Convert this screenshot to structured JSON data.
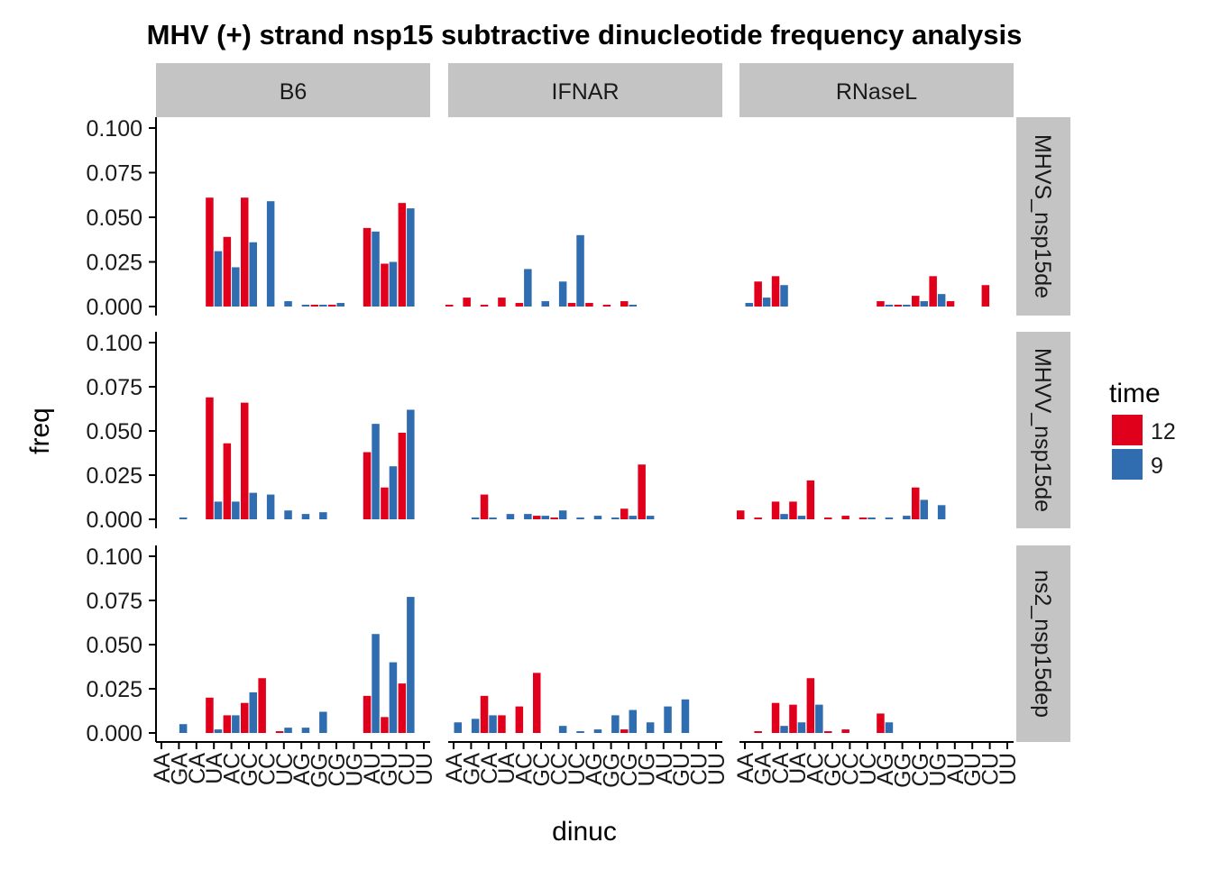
{
  "chart_data": {
    "type": "bar",
    "title": "MHV (+) strand nsp15 subtractive dinucleotide frequency analysis",
    "xlabel": "dinuc",
    "ylabel": "freq",
    "ylim": [
      0,
      0.105
    ],
    "y_ticks": [
      "0.000",
      "0.025",
      "0.050",
      "0.075",
      "0.100"
    ],
    "y_tick_values": [
      0,
      0.025,
      0.05,
      0.075,
      0.1
    ],
    "categories": [
      "AA",
      "GA",
      "CA",
      "UA",
      "AC",
      "GC",
      "CC",
      "UC",
      "AG",
      "GG",
      "CG",
      "UG",
      "AU",
      "GU",
      "CU",
      "UU"
    ],
    "column_facets": [
      "B6",
      "IFNAR",
      "RNaseL"
    ],
    "row_facets": [
      "MHVS_nsp15de",
      "MHVV_nsp15de",
      "ns2_nsp15dep"
    ],
    "legend": {
      "title": "time",
      "position": "right",
      "entries": [
        "12",
        "9"
      ]
    },
    "colors": {
      "12": "#E0001B",
      "9": "#2F6DB0",
      "strip_fill": "#C4C4C4"
    },
    "panels": [
      {
        "row": 0,
        "col": 0,
        "series": [
          {
            "name": "12",
            "values": [
              null,
              null,
              null,
              0.061,
              0.039,
              0.061,
              null,
              null,
              null,
              0.001,
              0.001,
              null,
              0.044,
              0.024,
              0.058,
              null
            ]
          },
          {
            "name": "9",
            "values": [
              null,
              null,
              null,
              0.031,
              0.022,
              0.036,
              0.059,
              0.003,
              0.001,
              0.001,
              0.002,
              null,
              0.042,
              0.025,
              0.055,
              null
            ]
          }
        ]
      },
      {
        "row": 0,
        "col": 1,
        "series": [
          {
            "name": "12",
            "values": [
              0.001,
              0.005,
              0.001,
              0.005,
              0.002,
              null,
              null,
              0.002,
              0.002,
              0.001,
              0.003,
              null,
              null,
              null,
              null,
              null
            ]
          },
          {
            "name": "9",
            "values": [
              null,
              null,
              null,
              null,
              0.021,
              0.003,
              0.014,
              0.04,
              null,
              null,
              0.001,
              null,
              null,
              null,
              null,
              null
            ]
          }
        ]
      },
      {
        "row": 0,
        "col": 2,
        "series": [
          {
            "name": "12",
            "values": [
              null,
              0.014,
              0.017,
              null,
              null,
              null,
              null,
              null,
              0.003,
              0.001,
              0.006,
              0.017,
              0.003,
              null,
              0.012,
              null
            ]
          },
          {
            "name": "9",
            "values": [
              0.002,
              0.005,
              0.012,
              null,
              null,
              null,
              null,
              null,
              0.001,
              0.001,
              0.003,
              0.007,
              null,
              null,
              null,
              null
            ]
          }
        ]
      },
      {
        "row": 1,
        "col": 0,
        "series": [
          {
            "name": "12",
            "values": [
              null,
              null,
              null,
              0.069,
              0.043,
              0.066,
              null,
              null,
              null,
              null,
              null,
              null,
              0.038,
              0.018,
              0.049,
              null
            ]
          },
          {
            "name": "9",
            "values": [
              null,
              0.001,
              null,
              0.01,
              0.01,
              0.015,
              0.014,
              0.005,
              0.003,
              0.004,
              null,
              null,
              0.054,
              0.03,
              0.062,
              null
            ]
          }
        ]
      },
      {
        "row": 1,
        "col": 1,
        "series": [
          {
            "name": "12",
            "values": [
              null,
              null,
              0.014,
              null,
              null,
              0.002,
              0.001,
              null,
              null,
              null,
              0.006,
              0.031,
              null,
              null,
              null,
              null
            ]
          },
          {
            "name": "9",
            "values": [
              null,
              0.001,
              0.001,
              0.003,
              0.003,
              0.002,
              0.005,
              0.001,
              0.002,
              0.001,
              0.002,
              0.002,
              null,
              null,
              null,
              null
            ]
          }
        ]
      },
      {
        "row": 1,
        "col": 2,
        "series": [
          {
            "name": "12",
            "values": [
              0.005,
              0.001,
              0.01,
              0.01,
              0.022,
              0.001,
              0.002,
              0.001,
              null,
              null,
              0.018,
              null,
              null,
              null,
              null,
              null
            ]
          },
          {
            "name": "9",
            "values": [
              null,
              null,
              0.003,
              0.002,
              null,
              null,
              null,
              0.001,
              0.001,
              0.002,
              0.011,
              0.008,
              null,
              null,
              null,
              null
            ]
          }
        ]
      },
      {
        "row": 2,
        "col": 0,
        "series": [
          {
            "name": "12",
            "values": [
              null,
              null,
              null,
              0.02,
              0.01,
              0.017,
              0.031,
              0.001,
              null,
              null,
              null,
              null,
              0.021,
              0.009,
              0.028,
              null
            ]
          },
          {
            "name": "9",
            "values": [
              null,
              0.005,
              null,
              0.002,
              0.01,
              0.023,
              null,
              0.003,
              0.003,
              0.012,
              null,
              null,
              0.056,
              0.04,
              0.077,
              null
            ]
          }
        ]
      },
      {
        "row": 2,
        "col": 1,
        "series": [
          {
            "name": "12",
            "values": [
              null,
              null,
              0.021,
              0.01,
              0.015,
              0.034,
              null,
              null,
              null,
              null,
              0.002,
              null,
              null,
              null,
              null,
              null
            ]
          },
          {
            "name": "9",
            "values": [
              0.006,
              0.008,
              0.01,
              null,
              null,
              null,
              0.004,
              0.001,
              0.002,
              0.01,
              0.013,
              0.006,
              0.015,
              0.019,
              null,
              null
            ]
          }
        ]
      },
      {
        "row": 2,
        "col": 2,
        "series": [
          {
            "name": "12",
            "values": [
              null,
              0.001,
              0.017,
              0.016,
              0.031,
              0.001,
              0.002,
              null,
              0.011,
              null,
              null,
              null,
              null,
              null,
              null,
              null
            ]
          },
          {
            "name": "9",
            "values": [
              null,
              null,
              0.004,
              0.006,
              0.016,
              null,
              null,
              null,
              0.006,
              null,
              null,
              null,
              null,
              null,
              null,
              null
            ]
          }
        ]
      }
    ]
  }
}
